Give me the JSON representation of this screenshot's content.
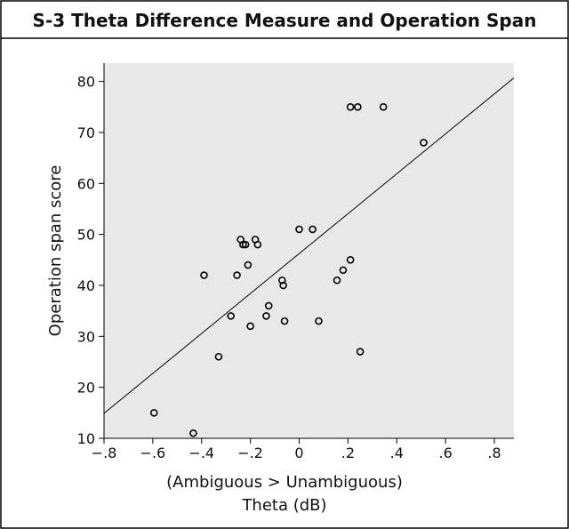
{
  "chart_data": {
    "type": "scatter",
    "title": "S-3 Theta Difference Measure and Operation Span",
    "xlabel": [
      "(Ambiguous > Unambiguous)",
      "Theta (dB)"
    ],
    "ylabel": "Operation span score",
    "xlim": [
      -0.8,
      0.88
    ],
    "ylim": [
      10,
      83.6
    ],
    "xticks": [
      {
        "value": -0.8,
        "label": "−.8"
      },
      {
        "value": -0.6,
        "label": "−.6"
      },
      {
        "value": -0.4,
        "label": "−.4"
      },
      {
        "value": -0.2,
        "label": "−.2"
      },
      0,
      {
        "value": 0.2,
        "label": ".2"
      },
      {
        "value": 0.4,
        "label": ".4"
      },
      {
        "value": 0.6,
        "label": ".6"
      },
      {
        "value": 0.8,
        "label": ".8"
      }
    ],
    "yticks": [
      10,
      20,
      30,
      40,
      50,
      60,
      70,
      80
    ],
    "color": "#000000",
    "background": "#e8e8e8",
    "x": [
      -0.595,
      -0.434,
      -0.33,
      -0.39,
      -0.28,
      -0.255,
      -0.24,
      -0.23,
      -0.22,
      -0.21,
      -0.2,
      -0.18,
      -0.17,
      -0.135,
      -0.125,
      -0.07,
      -0.065,
      -0.06,
      0,
      0.055,
      0.08,
      0.155,
      0.18,
      0.21,
      0.21,
      0.24,
      0.25,
      0.345,
      0.51
    ],
    "values": [
      15,
      11,
      26,
      42,
      34,
      42,
      49,
      48,
      48,
      44,
      32,
      49,
      48,
      34,
      36,
      41,
      40,
      33,
      51,
      51,
      33,
      41,
      43,
      45,
      75,
      75,
      27,
      75,
      68
    ],
    "trend_line": {
      "x": [
        -0.8,
        0.88
      ],
      "y": [
        14.9,
        80.7
      ]
    }
  }
}
